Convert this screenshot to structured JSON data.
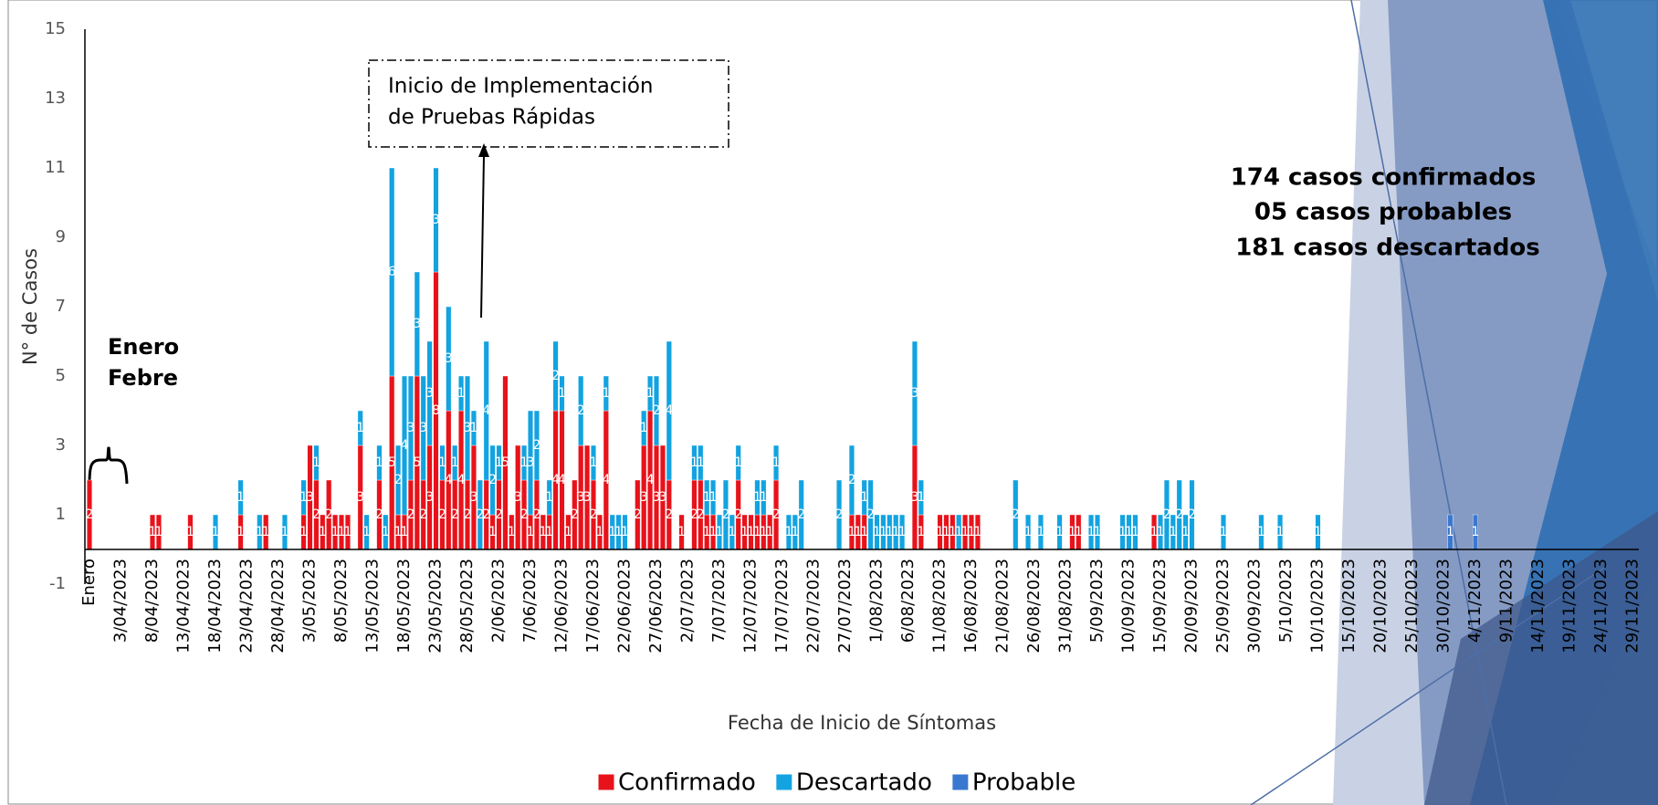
{
  "chart_data": {
    "type": "bar",
    "stacked": true,
    "x_label": "Fecha de Inicio de Síntomas",
    "y_label": "N° de Casos",
    "ylim": [
      -1,
      15
    ],
    "yticks": [
      -1,
      1,
      3,
      5,
      7,
      9,
      11,
      13,
      15
    ],
    "grid": false,
    "legend": "bottom",
    "annotations": {
      "arrow_box": [
        "Inicio de Implementación",
        "de Pruebas Rápidas"
      ],
      "months": [
        "Enero",
        "Febre"
      ],
      "summary": [
        "174 casos confirmados",
        "05 casos probables",
        "181 casos descartados"
      ]
    },
    "categories": [
      "Enero",
      null,
      null,
      null,
      null,
      "3/04/2023",
      null,
      null,
      null,
      null,
      "8/04/2023",
      null,
      null,
      null,
      null,
      "13/04/2023",
      null,
      null,
      null,
      null,
      "18/04/2023",
      null,
      null,
      null,
      null,
      "23/04/2023",
      null,
      null,
      null,
      null,
      "28/04/2023",
      null,
      null,
      null,
      null,
      "3/05/2023",
      null,
      null,
      null,
      null,
      "8/05/2023",
      null,
      null,
      null,
      null,
      "13/05/2023",
      null,
      null,
      null,
      null,
      "18/05/2023",
      null,
      null,
      null,
      null,
      "23/05/2023",
      null,
      null,
      null,
      null,
      "28/05/2023",
      null,
      null,
      null,
      null,
      "2/06/2023",
      null,
      null,
      null,
      null,
      "7/06/2023",
      null,
      null,
      null,
      null,
      "12/06/2023",
      null,
      null,
      null,
      null,
      "17/06/2023",
      null,
      null,
      null,
      null,
      "22/06/2023",
      null,
      null,
      null,
      null,
      "27/06/2023",
      null,
      null,
      null,
      null,
      "2/07/2023",
      null,
      null,
      null,
      null,
      "7/07/2023",
      null,
      null,
      null,
      null,
      "12/07/2023",
      null,
      null,
      null,
      null,
      "17/07/2023",
      null,
      null,
      null,
      null,
      "22/07/2023",
      null,
      null,
      null,
      null,
      "27/07/2023",
      null,
      null,
      null,
      null,
      "1/08/2023",
      null,
      null,
      null,
      null,
      "6/08/2023",
      null,
      null,
      null,
      null,
      "11/08/2023",
      null,
      null,
      null,
      null,
      "16/08/2023",
      null,
      null,
      null,
      null,
      "21/08/2023",
      null,
      null,
      null,
      null,
      "26/08/2023",
      null,
      null,
      null,
      null,
      "31/08/2023",
      null,
      null,
      null,
      null,
      "5/09/2023",
      null,
      null,
      null,
      null,
      "10/09/2023",
      null,
      null,
      null,
      null,
      "15/09/2023",
      null,
      null,
      null,
      null,
      "20/09/2023",
      null,
      null,
      null,
      null,
      "25/09/2023",
      null,
      null,
      null,
      null,
      "30/09/2023",
      null,
      null,
      null,
      null,
      "5/10/2023",
      null,
      null,
      null,
      null,
      "10/10/2023",
      null,
      null,
      null,
      null,
      "15/10/2023",
      null,
      null,
      null,
      null,
      "20/10/2023",
      null,
      null,
      null,
      null,
      "25/10/2023",
      null,
      null,
      null,
      null,
      "30/10/2023",
      null,
      null,
      null,
      null,
      "4/11/2023",
      null,
      null,
      null,
      null,
      "9/11/2023",
      null,
      null,
      null,
      null,
      "14/11/2023",
      null,
      null,
      null,
      null,
      "19/11/2023",
      null,
      null,
      null,
      null,
      "24/11/2023",
      null,
      null,
      null,
      null,
      "29/11/2023"
    ],
    "series": [
      {
        "name": "Confirmado",
        "color": "#e8121a",
        "values": [
          2,
          0,
          0,
          0,
          0,
          0,
          0,
          0,
          0,
          0,
          1,
          1,
          0,
          0,
          0,
          0,
          1,
          0,
          0,
          0,
          0,
          0,
          0,
          0,
          1,
          0,
          0,
          0,
          1,
          0,
          0,
          0,
          0,
          0,
          1,
          3,
          2,
          1,
          2,
          1,
          1,
          1,
          0,
          3,
          0,
          0,
          2,
          0,
          5,
          1,
          1,
          2,
          5,
          2,
          3,
          8,
          2,
          4,
          2,
          4,
          2,
          3,
          0,
          2,
          1,
          2,
          5,
          1,
          3,
          2,
          1,
          2,
          1,
          1,
          4,
          4,
          1,
          2,
          3,
          3,
          2,
          1,
          4,
          0,
          0,
          0,
          0,
          2,
          3,
          4,
          3,
          3,
          2,
          0,
          1,
          0,
          2,
          2,
          1,
          1,
          0,
          0,
          0,
          2,
          1,
          1,
          1,
          1,
          1,
          2,
          0,
          0,
          0,
          0,
          0,
          0,
          0,
          0,
          0,
          0,
          0,
          1,
          1,
          1,
          0,
          0,
          0,
          0,
          0,
          0,
          0,
          3,
          1,
          0,
          0,
          1,
          1,
          1,
          0,
          1,
          1,
          1,
          0,
          0,
          0,
          0,
          0,
          0,
          0,
          0,
          0,
          0,
          0,
          0,
          0,
          0,
          1,
          1,
          0,
          0,
          0,
          0,
          0,
          0,
          0,
          0,
          0,
          0,
          0,
          1,
          0,
          0,
          0,
          0,
          0,
          0,
          0,
          0,
          0,
          0,
          0,
          0,
          0,
          0,
          0,
          0,
          0,
          0,
          0,
          0,
          0,
          0,
          0,
          0,
          0,
          0,
          0,
          0,
          0,
          0,
          0,
          0,
          0,
          0,
          0,
          0,
          0,
          0,
          0,
          0,
          0,
          0,
          0,
          0,
          0,
          0,
          0,
          0,
          0,
          0,
          0,
          0,
          0,
          0,
          0,
          0,
          0,
          0,
          0,
          0,
          0,
          0,
          0,
          0,
          0,
          0,
          0,
          0,
          0,
          0,
          0,
          0,
          0,
          0,
          0,
          0
        ]
      },
      {
        "name": "Descartado",
        "color": "#12a3e0",
        "values": [
          0,
          0,
          0,
          0,
          0,
          0,
          0,
          0,
          0,
          0,
          0,
          0,
          0,
          0,
          0,
          0,
          0,
          0,
          0,
          0,
          1,
          0,
          0,
          0,
          1,
          0,
          0,
          1,
          0,
          0,
          0,
          1,
          0,
          0,
          1,
          0,
          1,
          0,
          0,
          0,
          0,
          0,
          0,
          1,
          1,
          0,
          1,
          1,
          6,
          2,
          4,
          3,
          3,
          3,
          3,
          3,
          1,
          3,
          1,
          1,
          3,
          1,
          2,
          4,
          2,
          1,
          0,
          0,
          0,
          1,
          3,
          2,
          0,
          1,
          2,
          1,
          0,
          0,
          2,
          0,
          1,
          0,
          1,
          1,
          1,
          1,
          0,
          0,
          1,
          1,
          2,
          0,
          4,
          0,
          0,
          0,
          1,
          1,
          1,
          1,
          1,
          2,
          1,
          1,
          0,
          0,
          1,
          1,
          0,
          1,
          0,
          1,
          1,
          2,
          0,
          0,
          0,
          0,
          0,
          2,
          0,
          2,
          0,
          1,
          2,
          1,
          1,
          1,
          1,
          1,
          0,
          3,
          1,
          0,
          0,
          0,
          0,
          0,
          1,
          0,
          0,
          0,
          0,
          0,
          0,
          0,
          0,
          2,
          0,
          1,
          0,
          1,
          0,
          0,
          1,
          0,
          0,
          0,
          0,
          1,
          1,
          0,
          0,
          0,
          1,
          1,
          1,
          0,
          0,
          0,
          1,
          2,
          1,
          2,
          1,
          2,
          0,
          0,
          0,
          0,
          1,
          0,
          0,
          0,
          0,
          0,
          1,
          0,
          0,
          1,
          0,
          0,
          0,
          0,
          0,
          1,
          0,
          0,
          0,
          0,
          0,
          0,
          0,
          0,
          0,
          0,
          0,
          0,
          0,
          0,
          0,
          0,
          0,
          0,
          0,
          0,
          0,
          0,
          0,
          0,
          0,
          0,
          0,
          0,
          0,
          0,
          0,
          0,
          0,
          0,
          0,
          0,
          0,
          0,
          0,
          0,
          0,
          0,
          0,
          0,
          0,
          0,
          0,
          0,
          0,
          0
        ]
      },
      {
        "name": "Probable",
        "color": "#3a78d0",
        "values": [
          0,
          0,
          0,
          0,
          0,
          0,
          0,
          0,
          0,
          0,
          0,
          0,
          0,
          0,
          0,
          0,
          0,
          0,
          0,
          0,
          0,
          0,
          0,
          0,
          0,
          0,
          0,
          0,
          0,
          0,
          0,
          0,
          0,
          0,
          0,
          0,
          0,
          0,
          0,
          0,
          0,
          0,
          0,
          0,
          0,
          0,
          0,
          0,
          0,
          0,
          0,
          0,
          0,
          0,
          0,
          0,
          0,
          0,
          0,
          0,
          0,
          0,
          0,
          0,
          0,
          0,
          0,
          0,
          0,
          0,
          0,
          0,
          0,
          0,
          0,
          0,
          0,
          0,
          0,
          0,
          0,
          0,
          0,
          0,
          0,
          0,
          0,
          0,
          0,
          0,
          0,
          0,
          0,
          0,
          0,
          0,
          0,
          0,
          0,
          0,
          0,
          0,
          0,
          0,
          0,
          0,
          0,
          0,
          0,
          0,
          0,
          0,
          0,
          0,
          0,
          0,
          0,
          0,
          0,
          0,
          0,
          0,
          0,
          0,
          0,
          0,
          0,
          0,
          0,
          0,
          0,
          0,
          0,
          0,
          0,
          0,
          0,
          0,
          0,
          0,
          0,
          0,
          0,
          0,
          0,
          0,
          0,
          0,
          0,
          0,
          0,
          0,
          0,
          0,
          0,
          0,
          0,
          0,
          0,
          0,
          0,
          0,
          0,
          0,
          0,
          0,
          0,
          0,
          0,
          0,
          0,
          0,
          0,
          0,
          0,
          0,
          0,
          0,
          0,
          0,
          0,
          0,
          0,
          0,
          0,
          0,
          0,
          0,
          0,
          0,
          0,
          0,
          0,
          0,
          0,
          0,
          0,
          0,
          0,
          0,
          0,
          0,
          0,
          0,
          0,
          0,
          0,
          0,
          0,
          0,
          0,
          0,
          0,
          0,
          0,
          0,
          1,
          0,
          0,
          0,
          1,
          0,
          0,
          0,
          0,
          0,
          0,
          0,
          0,
          0,
          0,
          0,
          0,
          0,
          0,
          0,
          0,
          0,
          0,
          0,
          0,
          0,
          0,
          0,
          0,
          0
        ]
      }
    ]
  }
}
